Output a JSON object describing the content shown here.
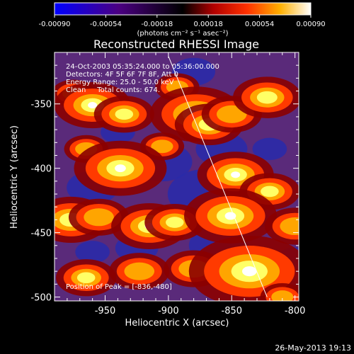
{
  "chart_data": {
    "type": "heatmap",
    "title": "Reconstructed RHESSI Image",
    "xlabel": "Heliocentric X (arcsec)",
    "ylabel": "Heliocentric Y (arcsec)",
    "xlim": [
      -990,
      -797
    ],
    "ylim": [
      -503,
      -310
    ],
    "x_ticks": [
      -950,
      -900,
      -850,
      -800
    ],
    "y_ticks": [
      -350,
      -400,
      -450,
      -500
    ],
    "colorbar": {
      "ticks": [
        "-0.00090",
        "-0.00054",
        "-0.00018",
        "0.00018",
        "0.00054",
        "0.00090"
      ],
      "range": [
        -0.0009,
        0.0009
      ],
      "units_label": "(photons cm⁻² s⁻¹ asec⁻²)"
    },
    "info_lines": [
      "24-Oct-2003 05:35:24.000 to 05:36:00.000",
      "Detectors: 4F 5F 6F 7F 8F, Att 0",
      "Energy Range: 25.0 - 50.0 keV",
      "Clean     Total counts: 674."
    ],
    "peak_label": "Position of Peak = [-836,-480]",
    "peak_position": [
      -836,
      -480
    ],
    "limb_line": [
      [
        -900,
        -313
      ],
      [
        -822,
        -500
      ]
    ],
    "blobs": [
      [
        -975,
        -342,
        6,
        0.7
      ],
      [
        -960,
        -351,
        14,
        1.0
      ],
      [
        -935,
        -358,
        10,
        0.9
      ],
      [
        -893,
        -337,
        6,
        0.6
      ],
      [
        -878,
        -358,
        18,
        1.0
      ],
      [
        -868,
        -366,
        12,
        0.9
      ],
      [
        -850,
        -358,
        10,
        0.8
      ],
      [
        -822,
        -345,
        12,
        0.9
      ],
      [
        -965,
        -385,
        6,
        0.7
      ],
      [
        -905,
        -383,
        6,
        0.6
      ],
      [
        -847,
        -405,
        14,
        1.0
      ],
      [
        -820,
        -418,
        10,
        0.9
      ],
      [
        -938,
        -400,
        18,
        1.0
      ],
      [
        -977,
        -440,
        14,
        0.9
      ],
      [
        -955,
        -438,
        10,
        0.8
      ],
      [
        -915,
        -445,
        14,
        1.0
      ],
      [
        -895,
        -442,
        10,
        0.9
      ],
      [
        -851,
        -437,
        18,
        1.0
      ],
      [
        -800,
        -445,
        10,
        0.8
      ],
      [
        -965,
        -485,
        10,
        0.9
      ],
      [
        -923,
        -480,
        10,
        0.8
      ],
      [
        -880,
        -478,
        10,
        0.8
      ],
      [
        -836,
        -480,
        25,
        1.0
      ],
      [
        -810,
        -500,
        6,
        0.6
      ]
    ],
    "troughs": [
      [
        -880,
        -325,
        10
      ],
      [
        -940,
        -372,
        8
      ],
      [
        -905,
        -395,
        14
      ],
      [
        -858,
        -385,
        12
      ],
      [
        -960,
        -415,
        12
      ],
      [
        -870,
        -420,
        18
      ],
      [
        -820,
        -385,
        8
      ],
      [
        -925,
        -462,
        10
      ],
      [
        -860,
        -460,
        14
      ],
      [
        -800,
        -470,
        8
      ],
      [
        -960,
        -465,
        8
      ],
      [
        -830,
        -440,
        6
      ]
    ]
  }
}
